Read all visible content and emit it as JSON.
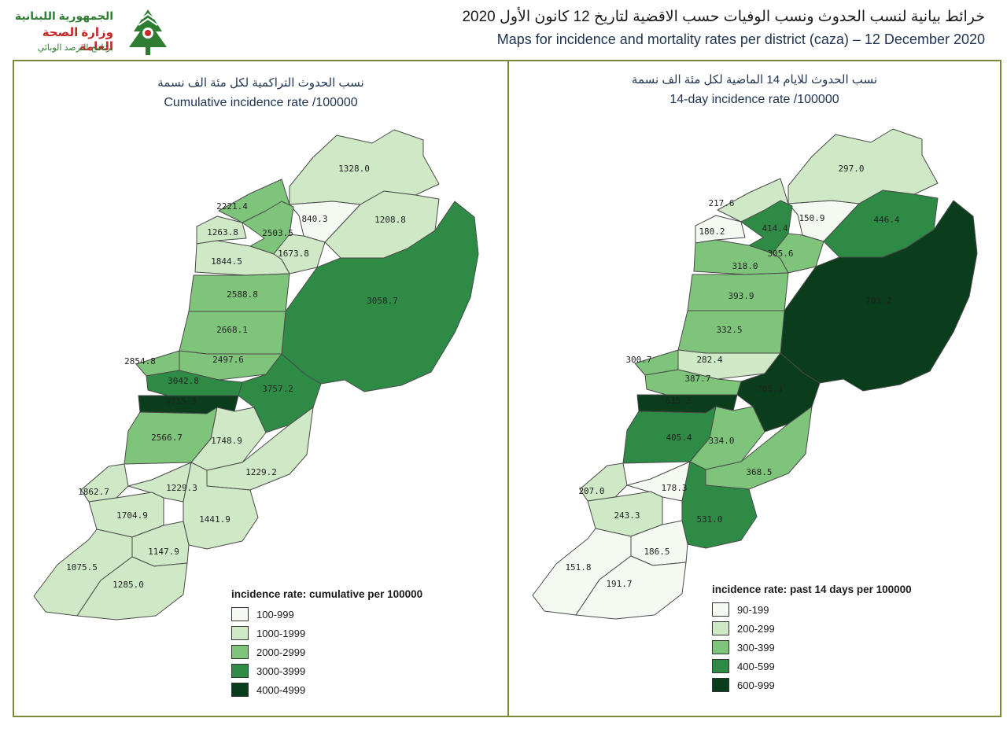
{
  "header": {
    "logo": {
      "line1": "الجمهورية اللبنانية",
      "line2": "وزارة الصحة العامة",
      "line3": "برنامج الترصد الوبائي"
    },
    "title_ar": "خرائط بيانية لنسب الحدوث ونسب الوفيات حسب الاقضية لتاريخ 12 كانون الأول 2020",
    "title_en": "Maps for incidence and mortality rates per district (caza) – 12 December 2020"
  },
  "maps": {
    "left": {
      "title_ar": "نسب الحدوث التراكمية لكل مئة الف نسمة",
      "title_en": "Cumulative incidence rate /100000",
      "legend_title": "incidence rate: cumulative per 100000",
      "legend": [
        {
          "label": "100-999",
          "color": "#f4faf2"
        },
        {
          "label": "1000-1999",
          "color": "#cfe9c7"
        },
        {
          "label": "2000-2999",
          "color": "#7fc47b"
        },
        {
          "label": "3000-3999",
          "color": "#2e8b46"
        },
        {
          "label": "4000-4999",
          "color": "#0a3d1c"
        }
      ],
      "districts": [
        {
          "value": "1328.0",
          "level": 1
        },
        {
          "value": "2221.4",
          "level": 2
        },
        {
          "value": "840.3",
          "level": 0
        },
        {
          "value": "1208.8",
          "level": 1
        },
        {
          "value": "1263.8",
          "level": 1
        },
        {
          "value": "2503.5",
          "level": 2
        },
        {
          "value": "1673.8",
          "level": 1
        },
        {
          "value": "1844.5",
          "level": 1
        },
        {
          "value": "2588.8",
          "level": 2
        },
        {
          "value": "3058.7",
          "level": 3
        },
        {
          "value": "2668.1",
          "level": 2
        },
        {
          "value": "2854.8",
          "level": 2
        },
        {
          "value": "2497.6",
          "level": 2
        },
        {
          "value": "3042.8",
          "level": 3
        },
        {
          "value": "3757.2",
          "level": 3
        },
        {
          "value": "4715.3",
          "level": 4
        },
        {
          "value": "2566.7",
          "level": 2
        },
        {
          "value": "1748.9",
          "level": 1
        },
        {
          "value": "1229.2",
          "level": 1
        },
        {
          "value": "1862.7",
          "level": 1
        },
        {
          "value": "1229.3",
          "level": 1
        },
        {
          "value": "1704.9",
          "level": 1
        },
        {
          "value": "1441.9",
          "level": 1
        },
        {
          "value": "1147.9",
          "level": 1
        },
        {
          "value": "1075.5",
          "level": 1
        },
        {
          "value": "1285.0",
          "level": 1
        }
      ]
    },
    "right": {
      "title_ar": "نسب الحدوث للايام 14 الماضية لكل مئة الف نسمة",
      "title_en": "14-day incidence rate /100000",
      "legend_title": "incidence rate: past 14 days per 100000",
      "legend": [
        {
          "label": "90-199",
          "color": "#f4faf2"
        },
        {
          "label": "200-299",
          "color": "#cfe9c7"
        },
        {
          "label": "300-399",
          "color": "#7fc47b"
        },
        {
          "label": "400-599",
          "color": "#2e8b46"
        },
        {
          "label": "600-999",
          "color": "#0a3d1c"
        }
      ],
      "districts": [
        {
          "value": "297.0",
          "level": 1
        },
        {
          "value": "217.6",
          "level": 1
        },
        {
          "value": "150.9",
          "level": 0
        },
        {
          "value": "446.4",
          "level": 3
        },
        {
          "value": "180.2",
          "level": 0
        },
        {
          "value": "414.4",
          "level": 3
        },
        {
          "value": "305.6",
          "level": 2
        },
        {
          "value": "318.0",
          "level": 2
        },
        {
          "value": "393.9",
          "level": 2
        },
        {
          "value": "701.2",
          "level": 4
        },
        {
          "value": "332.5",
          "level": 2
        },
        {
          "value": "300.7",
          "level": 2
        },
        {
          "value": "282.4",
          "level": 1
        },
        {
          "value": "387.7",
          "level": 2
        },
        {
          "value": "765.1",
          "level": 4
        },
        {
          "value": "635.3",
          "level": 4
        },
        {
          "value": "405.4",
          "level": 3
        },
        {
          "value": "334.0",
          "level": 2
        },
        {
          "value": "368.5",
          "level": 2
        },
        {
          "value": "207.0",
          "level": 1
        },
        {
          "value": "178.3",
          "level": 0
        },
        {
          "value": "243.3",
          "level": 1
        },
        {
          "value": "531.0",
          "level": 3
        },
        {
          "value": "186.5",
          "level": 0
        },
        {
          "value": "151.8",
          "level": 0
        },
        {
          "value": "191.7",
          "level": 0
        }
      ]
    }
  }
}
